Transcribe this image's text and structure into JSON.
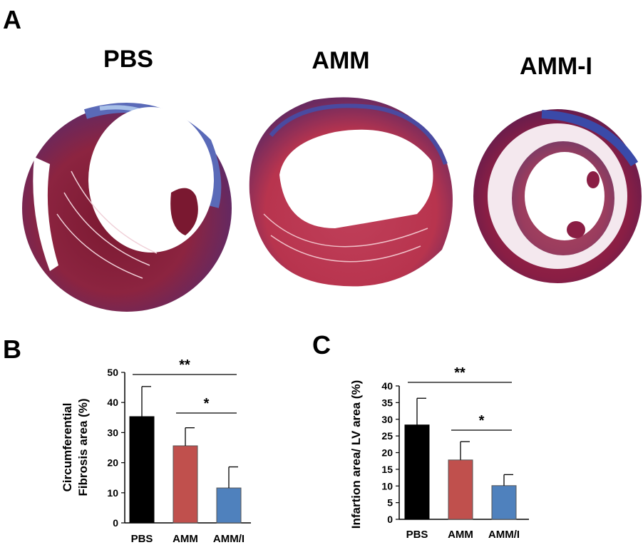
{
  "panels": {
    "a_letter": "A",
    "b_letter": "B",
    "c_letter": "C"
  },
  "images": {
    "pbs_title": "PBS",
    "amm_title": "AMM",
    "ammi_title": "AMM-I"
  },
  "colors": {
    "PBS": "#000000",
    "AMM": "#c0504d",
    "AMM/I": "#4f81bd"
  },
  "chart_data": [
    {
      "type": "bar",
      "panel": "B",
      "categories": [
        "PBS",
        "AMM",
        "AMM/I"
      ],
      "values": [
        35.3,
        25.6,
        11.6
      ],
      "errors": [
        10,
        6,
        7
      ],
      "ylabel_line1": "Circumferential",
      "ylabel_line2": "Fibrosis area (%)",
      "ylim": [
        0,
        50
      ],
      "yticks": [
        0,
        10,
        20,
        30,
        40,
        50
      ],
      "significance": [
        {
          "label": "**",
          "from": "PBS",
          "to": "AMM/I"
        },
        {
          "label": "*",
          "from": "AMM",
          "to": "AMM/I"
        }
      ]
    },
    {
      "type": "bar",
      "panel": "C",
      "categories": [
        "PBS",
        "AMM",
        "AMM/I"
      ],
      "values": [
        28.3,
        17.8,
        10.1
      ],
      "errors": [
        8,
        5.5,
        3.3
      ],
      "ylabel": "Infartion area/ LV area (%)",
      "ylim": [
        0,
        40
      ],
      "yticks": [
        0,
        5,
        10,
        15,
        20,
        25,
        30,
        35,
        40
      ],
      "significance": [
        {
          "label": "**",
          "from": "PBS",
          "to": "AMM/I"
        },
        {
          "label": "*",
          "from": "AMM",
          "to": "AMM/I"
        }
      ]
    }
  ]
}
